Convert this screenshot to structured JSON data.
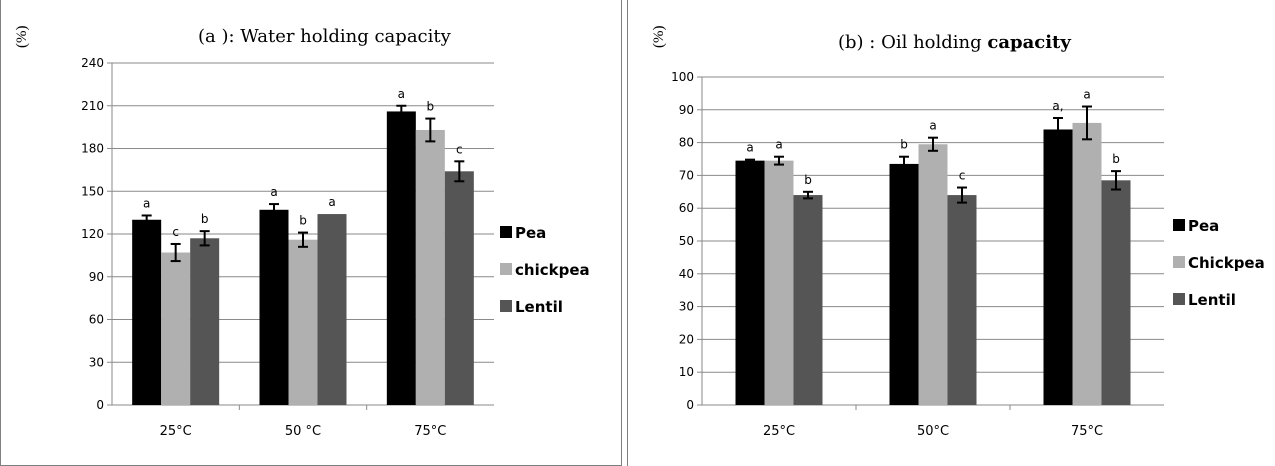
{
  "chart_data": [
    {
      "type": "bar",
      "title_prefix": "(a ): ",
      "title_main": "Water holding capacity",
      "title_bold": "",
      "ylabel": "(%)",
      "categories": [
        "25°C",
        "50 °C",
        "75°C"
      ],
      "ylim": [
        0,
        240
      ],
      "yticks": [
        "0",
        "30",
        "60",
        "90",
        "120",
        "150",
        "180",
        "210",
        "240"
      ],
      "grid": true,
      "legend_position": "right",
      "series": [
        {
          "name": "Pea",
          "color": "#000000",
          "values": [
            130,
            137,
            206
          ],
          "errors": [
            3,
            4,
            4
          ],
          "letters": [
            "a",
            "a",
            "a"
          ]
        },
        {
          "name": "chickpea",
          "color": "#b0b0b0",
          "values": [
            107,
            116,
            193
          ],
          "errors": [
            6,
            5,
            8
          ],
          "letters": [
            "c",
            "b",
            "b"
          ]
        },
        {
          "name": "Lentil",
          "color": "#555555",
          "values": [
            117,
            134,
            164
          ],
          "errors": [
            5,
            0,
            7
          ],
          "letters": [
            "b",
            "a",
            "c"
          ]
        }
      ]
    },
    {
      "type": "bar",
      "title_prefix": "(b) : ",
      "title_main": "Oil holding ",
      "title_bold": "capacity",
      "ylabel": "(%)",
      "categories": [
        "25°C",
        "50°C",
        "75°C"
      ],
      "ylim": [
        0,
        100
      ],
      "yticks": [
        "0",
        "10",
        "20",
        "30",
        "40",
        "50",
        "60",
        "70",
        "80",
        "90",
        "100"
      ],
      "grid": true,
      "legend_position": "right",
      "series": [
        {
          "name": "Pea",
          "color": "#000000",
          "values": [
            74.5,
            73.5,
            84
          ],
          "errors": [
            0.3,
            2.2,
            3.5
          ],
          "letters": [
            "a",
            "b",
            "a,"
          ]
        },
        {
          "name": "Chickpea",
          "color": "#b0b0b0",
          "values": [
            74.5,
            79.5,
            86
          ],
          "errors": [
            1.2,
            2,
            5
          ],
          "letters": [
            "a",
            "a",
            "a"
          ]
        },
        {
          "name": "Lentil",
          "color": "#555555",
          "values": [
            64,
            64,
            68.5
          ],
          "errors": [
            1,
            2.3,
            2.8
          ],
          "letters": [
            "b",
            "c",
            "b"
          ]
        }
      ]
    }
  ]
}
